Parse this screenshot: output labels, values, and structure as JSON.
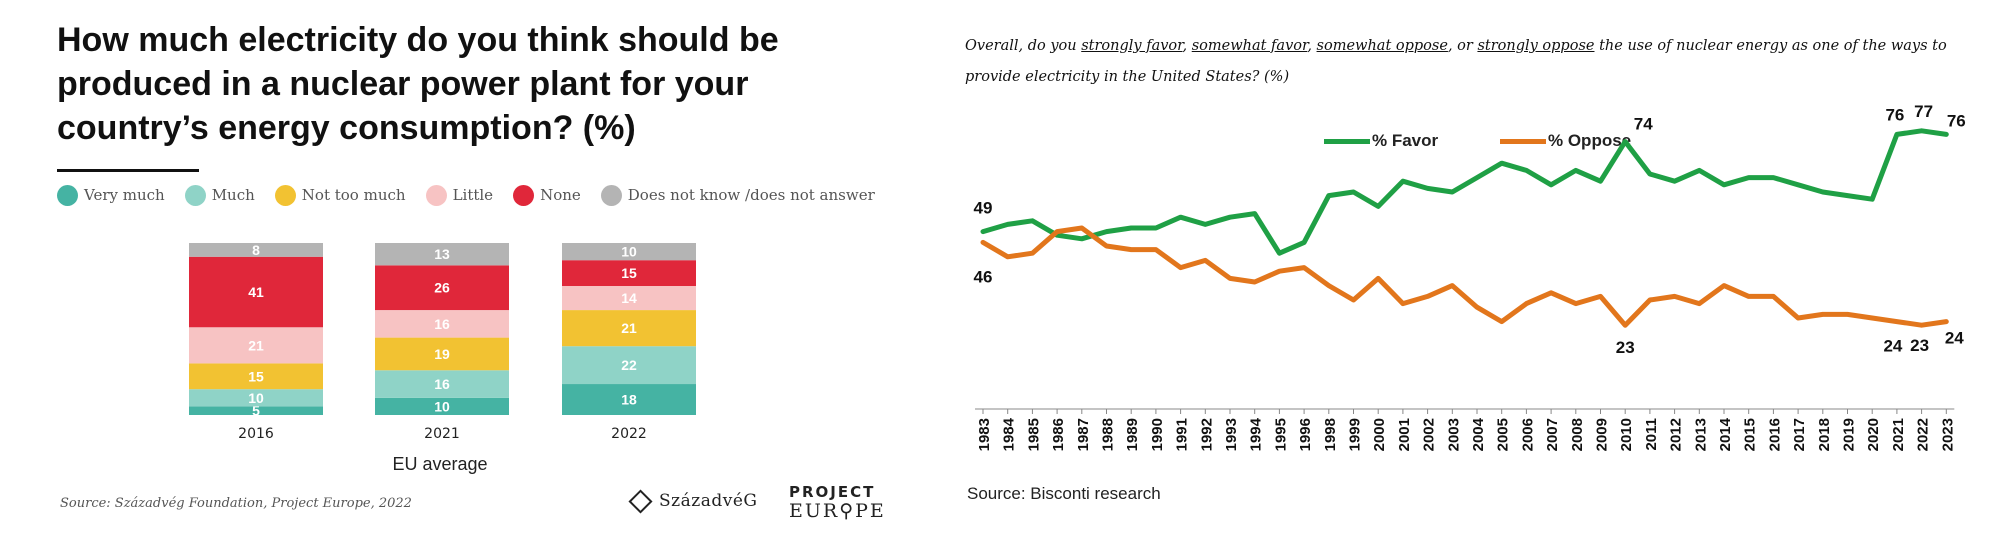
{
  "left": {
    "title": "How much electricity do you think should be produced in a nuclear power plant for your country’s energy consumption? (%)",
    "subtitle": "EU average",
    "source": "Source: Századvég Foundation, Project Europe, 2022",
    "logos": {
      "szazadveg": "SzázadvéG",
      "project_line1": "PROJECT",
      "project_line2": "EUR⚲PE"
    }
  },
  "right": {
    "question_parts": {
      "p1": "Overall, do you ",
      "u1": "strongly favor",
      "p2": ", ",
      "u2": "somewhat favor",
      "p3": ", ",
      "u3": "somewhat oppose",
      "p4": ", or ",
      "u4": "strongly oppose",
      "p5": " the use of nuclear energy as one of the ways to provide electricity in the United States? (%)"
    },
    "source": "Source: Bisconti research"
  },
  "colors": {
    "very_much": "#45b3a3",
    "much": "#8fd3c7",
    "not_too_much": "#f2c232",
    "little": "#f7c3c3",
    "none": "#e0273a",
    "dont_know": "#b4b4b4",
    "favor": "#1fa045",
    "oppose": "#e2761c"
  },
  "chart_data": [
    {
      "type": "bar",
      "stacked": true,
      "title": "How much electricity do you think should be produced in a nuclear power plant for your country’s energy consumption? (%)",
      "xlabel": "EU average",
      "categories": [
        "2016",
        "2021",
        "2022"
      ],
      "legend_position": "top",
      "series": [
        {
          "name": "Very much",
          "color": "#45b3a3",
          "values": [
            5,
            10,
            18
          ]
        },
        {
          "name": "Much",
          "color": "#8fd3c7",
          "values": [
            10,
            16,
            22
          ]
        },
        {
          "name": "Not too much",
          "color": "#f2c232",
          "values": [
            15,
            19,
            21
          ]
        },
        {
          "name": "Little",
          "color": "#f7c3c3",
          "values": [
            21,
            16,
            14
          ]
        },
        {
          "name": "None",
          "color": "#e0273a",
          "values": [
            41,
            26,
            15
          ]
        },
        {
          "name": "Does not know /does not answer",
          "color": "#b4b4b4",
          "values": [
            8,
            13,
            10
          ]
        }
      ]
    },
    {
      "type": "line",
      "grid": false,
      "legend_position": "top",
      "ylim": [
        0,
        100
      ],
      "x": [
        "1983",
        "1984",
        "1985",
        "1986",
        "1987",
        "1988",
        "1989",
        "1990",
        "1991",
        "1992",
        "1993",
        "1994",
        "1995",
        "1996",
        "1998",
        "1999",
        "2000",
        "2001",
        "2002",
        "2003",
        "2004",
        "2005",
        "2006",
        "2007",
        "2008",
        "2009",
        "2010",
        "2011",
        "2012",
        "2013",
        "2014",
        "2015",
        "2016",
        "2017",
        "2018",
        "2019",
        "2020",
        "2021",
        "2022",
        "2023"
      ],
      "series": [
        {
          "name": "% Favor",
          "color": "#1fa045",
          "values": [
            49,
            51,
            52,
            48,
            47,
            49,
            50,
            50,
            53,
            51,
            53,
            54,
            43,
            46,
            59,
            60,
            56,
            63,
            61,
            60,
            64,
            68,
            66,
            62,
            66,
            63,
            74,
            65,
            63,
            66,
            62,
            64,
            64,
            62,
            60,
            59,
            58,
            76,
            77,
            76
          ]
        },
        {
          "name": "% Oppose",
          "color": "#e2761c",
          "values": [
            46,
            42,
            43,
            49,
            50,
            45,
            44,
            44,
            39,
            41,
            36,
            35,
            38,
            39,
            34,
            30,
            36,
            29,
            31,
            34,
            28,
            24,
            29,
            32,
            29,
            31,
            23,
            30,
            31,
            29,
            34,
            31,
            31,
            25,
            26,
            26,
            25,
            24,
            23,
            24
          ]
        }
      ],
      "data_labels": [
        {
          "series": "% Favor",
          "x": "1983",
          "text": "49"
        },
        {
          "series": "% Oppose",
          "x": "1983",
          "text": "46"
        },
        {
          "series": "% Favor",
          "x": "2010",
          "text": "74"
        },
        {
          "series": "% Oppose",
          "x": "2010",
          "text": "23"
        },
        {
          "series": "% Favor",
          "x": "2021",
          "text": "76"
        },
        {
          "series": "% Favor",
          "x": "2022",
          "text": "77"
        },
        {
          "series": "% Favor",
          "x": "2023",
          "text": "76"
        },
        {
          "series": "% Oppose",
          "x": "2021",
          "text": "24"
        },
        {
          "series": "% Oppose",
          "x": "2022",
          "text": "23"
        },
        {
          "series": "% Oppose",
          "x": "2023",
          "text": "24"
        }
      ]
    }
  ]
}
